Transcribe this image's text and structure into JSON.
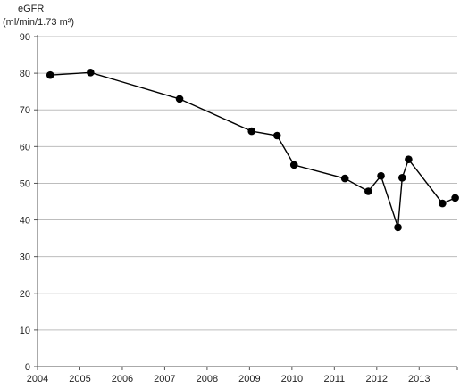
{
  "chart_data": {
    "type": "line",
    "title": "",
    "xlabel": "",
    "ylabel": "eGFR",
    "ylabel_unit": "(ml/min/1.73 m²)",
    "xlim": [
      2004,
      2013.9
    ],
    "ylim": [
      0,
      90
    ],
    "yticks": [
      "0",
      "10",
      "20",
      "30",
      "40",
      "50",
      "60",
      "70",
      "80",
      "90"
    ],
    "xticks": [
      "2004",
      "2005",
      "2006",
      "2007",
      "2008",
      "2009",
      "2010",
      "2011",
      "2012",
      "2013"
    ],
    "grid": "horizontal",
    "series": [
      {
        "color": "#000000",
        "points": [
          {
            "x": 2004.3,
            "y": 79.5
          },
          {
            "x": 2005.25,
            "y": 80.2
          },
          {
            "x": 2007.35,
            "y": 73
          },
          {
            "x": 2009.05,
            "y": 64.2
          },
          {
            "x": 2009.65,
            "y": 63
          },
          {
            "x": 2010.05,
            "y": 55
          },
          {
            "x": 2011.25,
            "y": 51.3
          },
          {
            "x": 2011.8,
            "y": 47.8
          },
          {
            "x": 2012.1,
            "y": 52
          },
          {
            "x": 2012.5,
            "y": 38
          },
          {
            "x": 2012.6,
            "y": 51.5
          },
          {
            "x": 2012.75,
            "y": 56.5
          },
          {
            "x": 2013.55,
            "y": 44.5
          },
          {
            "x": 2013.85,
            "y": 46
          }
        ]
      }
    ]
  }
}
